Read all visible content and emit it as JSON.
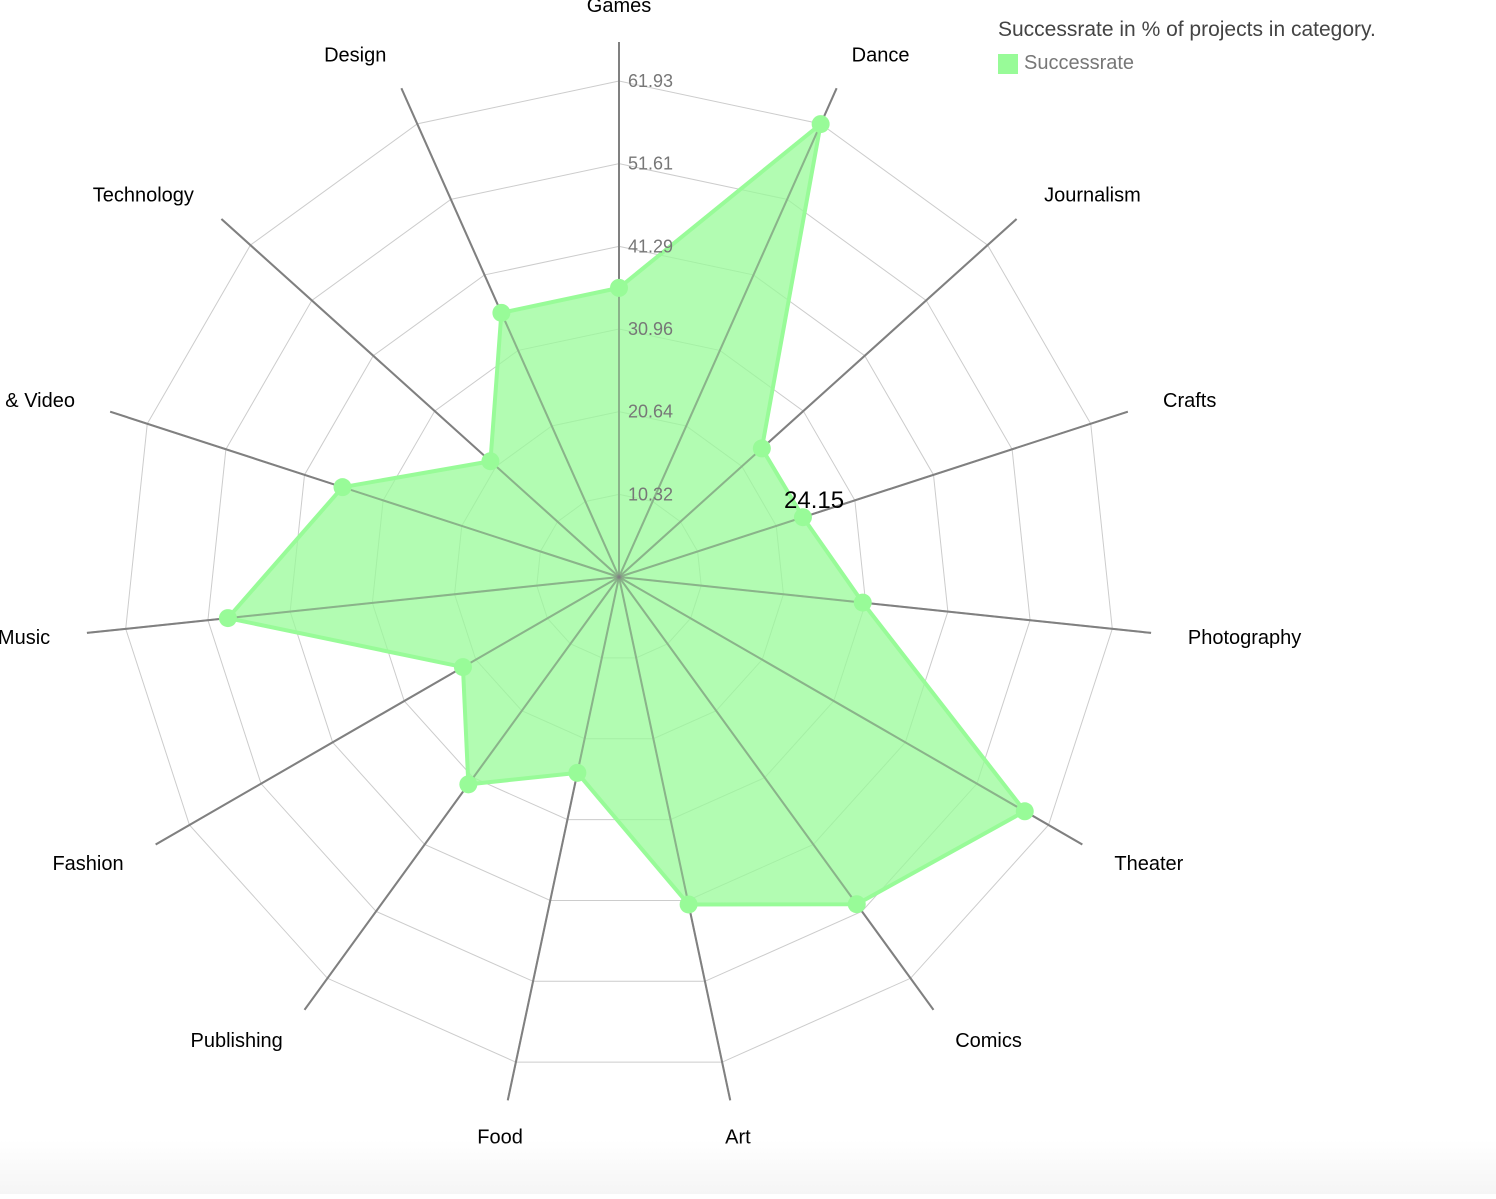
{
  "legend": {
    "title": "Successrate in % of projects in category.",
    "series_label": "Successrate"
  },
  "tooltip": {
    "value": "24.15"
  },
  "colors": {
    "series_fill": "#98fb98",
    "series_stroke": "#98fb98",
    "axis": "#808080",
    "grid": "#cccccc",
    "tick_label": "#777777"
  },
  "chart_data": {
    "type": "radar",
    "title": "Successrate in % of projects in category.",
    "categories": [
      "Games",
      "Dance",
      "Journalism",
      "Crafts",
      "Photography",
      "Theater",
      "Comics",
      "Art",
      "Food",
      "Publishing",
      "Fashion",
      "Music",
      "Film & Video",
      "Technology",
      "Design"
    ],
    "series": [
      {
        "name": "Successrate",
        "values": [
          36.1,
          61.9,
          24.0,
          24.15,
          30.6,
          58.5,
          50.5,
          41.8,
          25.0,
          32.0,
          22.5,
          49.1,
          36.3,
          21.6,
          36.1
        ]
      }
    ],
    "r_ticks": [
      "10.32",
      "20.64",
      "30.96",
      "41.29",
      "51.61",
      "61.93"
    ],
    "r_max": 61.93,
    "grid": true,
    "legend_position": "top-right"
  }
}
